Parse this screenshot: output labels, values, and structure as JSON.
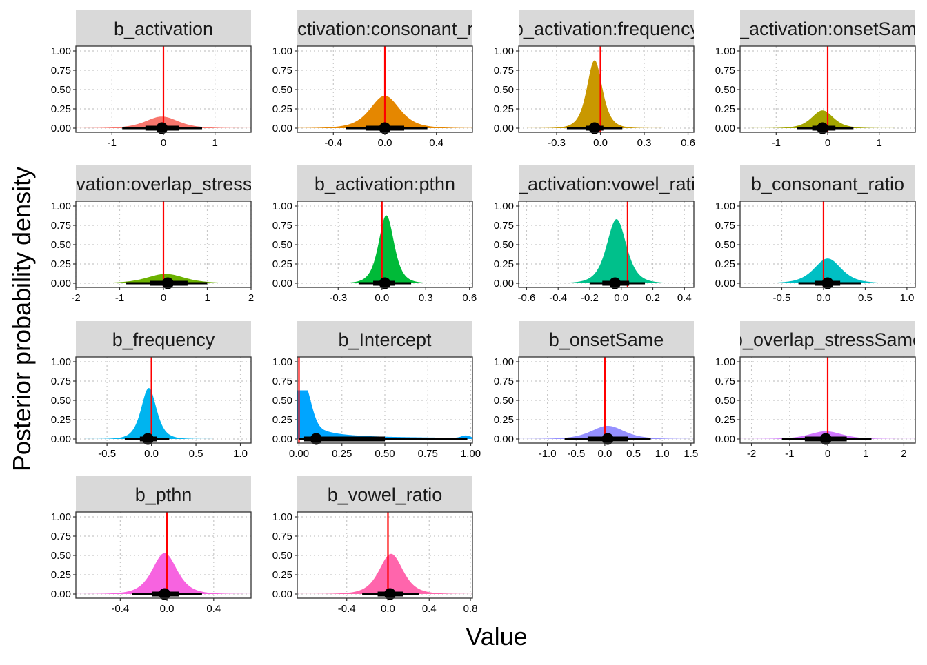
{
  "chart_data": {
    "type": "area",
    "xlabel": "Value",
    "ylabel": "Posterior probability density",
    "ylim": [
      0,
      1.05
    ],
    "y_ticks": [
      "1.00",
      "0.75",
      "0.50",
      "0.25",
      "0.00"
    ],
    "grid": true,
    "legend": "none",
    "reference_line_color": "#ff0000",
    "interval_color": "#000000",
    "panels": [
      {
        "title": "b_activation",
        "color": "#F8766D",
        "xlim": [
          -1.7,
          1.7
        ],
        "ref": 0.0,
        "ticks": [
          -1,
          0,
          1
        ],
        "tick_labels": [
          "-1",
          "0",
          "1"
        ],
        "peak": 0.15,
        "mode": -0.03,
        "sd": 0.33,
        "point": -0.03,
        "inner": [
          -0.35,
          0.3
        ],
        "outer": [
          -0.8,
          0.75
        ]
      },
      {
        "title": "b_activation:consonant_ratio",
        "color": "#E58700",
        "xlim": [
          -0.68,
          0.68
        ],
        "ref": 0.0,
        "ticks": [
          -0.4,
          0.0,
          0.4
        ],
        "tick_labels": [
          "-0.4",
          "0.0",
          "0.4"
        ],
        "peak": 0.42,
        "mode": 0.0,
        "sd": 0.12,
        "point": 0.0,
        "inner": [
          -0.15,
          0.15
        ],
        "outer": [
          -0.3,
          0.33
        ]
      },
      {
        "title": "b_activation:frequency",
        "color": "#C99800",
        "xlim": [
          -0.56,
          0.64
        ],
        "ref": 0.0,
        "ticks": [
          -0.3,
          0.0,
          0.3,
          0.6
        ],
        "tick_labels": [
          "-0.3",
          "0.0",
          "0.3",
          "0.6"
        ],
        "peak": 0.88,
        "mode": -0.04,
        "sd": 0.055,
        "point": -0.04,
        "inner": [
          -0.1,
          0.02
        ],
        "outer": [
          -0.23,
          0.15
        ]
      },
      {
        "title": "b_activation:onsetSame",
        "color": "#A3A500",
        "xlim": [
          -1.7,
          1.7
        ],
        "ref": 0.0,
        "ticks": [
          -1,
          0,
          1
        ],
        "tick_labels": [
          "-1",
          "0",
          "1"
        ],
        "peak": 0.23,
        "mode": -0.1,
        "sd": 0.22,
        "point": -0.1,
        "inner": [
          -0.3,
          0.15
        ],
        "outer": [
          -0.6,
          0.5
        ]
      },
      {
        "title": "b_activation:overlap_stressSame",
        "color": "#6BB100",
        "xlim": [
          -2.0,
          2.0
        ],
        "ref": 0.0,
        "ticks": [
          -2,
          -1,
          0,
          1,
          2
        ],
        "tick_labels": [
          "-2",
          "-1",
          "0",
          "1",
          "2"
        ],
        "peak": 0.12,
        "mode": 0.05,
        "sd": 0.45,
        "point": 0.1,
        "inner": [
          -0.3,
          0.55
        ],
        "outer": [
          -0.85,
          1.0
        ]
      },
      {
        "title": "b_activation:pthn",
        "color": "#00BA38",
        "xlim": [
          -0.58,
          0.62
        ],
        "ref": 0.0,
        "ticks": [
          -0.3,
          0.0,
          0.3,
          0.6
        ],
        "tick_labels": [
          "-0.3",
          "0.0",
          "0.3",
          "0.6"
        ],
        "peak": 0.88,
        "mode": 0.03,
        "sd": 0.055,
        "point": 0.02,
        "inner": [
          -0.06,
          0.09
        ],
        "outer": [
          -0.16,
          0.2
        ]
      },
      {
        "title": "b_activation:vowel_ratio",
        "color": "#00C08B",
        "xlim": [
          -0.65,
          0.46
        ],
        "ref": 0.04,
        "ticks": [
          -0.6,
          -0.4,
          -0.2,
          0.0,
          0.2,
          0.4
        ],
        "tick_labels": [
          "-0.6",
          "-0.4",
          "-0.2",
          "0.0",
          "0.2",
          "0.4"
        ],
        "peak": 0.83,
        "mode": -0.03,
        "sd": 0.065,
        "point": -0.04,
        "inner": [
          -0.12,
          0.05
        ],
        "outer": [
          -0.2,
          0.15
        ]
      },
      {
        "title": "b_consonant_ratio",
        "color": "#00BFC4",
        "xlim": [
          -1.0,
          1.1
        ],
        "ref": 0.0,
        "ticks": [
          -0.5,
          0.0,
          0.5,
          1.0
        ],
        "tick_labels": [
          "-0.5",
          "0.0",
          "0.5",
          "1.0"
        ],
        "peak": 0.32,
        "mode": 0.05,
        "sd": 0.17,
        "point": 0.05,
        "inner": [
          -0.1,
          0.2
        ],
        "outer": [
          -0.3,
          0.45
        ]
      },
      {
        "title": "b_frequency",
        "color": "#00B4EF",
        "xlim": [
          -0.85,
          1.12
        ],
        "ref": 0.0,
        "ticks": [
          -0.5,
          0.0,
          0.5,
          1.0
        ],
        "tick_labels": [
          "-0.5",
          "0.0",
          "0.5",
          "1.0"
        ],
        "peak": 0.66,
        "mode": -0.03,
        "sd": 0.09,
        "point": -0.04,
        "inner": [
          -0.13,
          0.06
        ],
        "outer": [
          -0.3,
          0.2
        ]
      },
      {
        "title": "b_Intercept",
        "color": "#00A5FF",
        "xlim": [
          -0.01,
          1.01
        ],
        "ref": 0.0,
        "ticks": [
          0.0,
          0.25,
          0.5,
          0.75,
          1.0
        ],
        "tick_labels": [
          "0.00",
          "0.25",
          "0.50",
          "0.75",
          "1.00"
        ],
        "peak": 0.63,
        "mode": 0.03,
        "sd": 0.2,
        "point": 0.1,
        "inner": [
          0.03,
          0.5
        ],
        "outer": [
          0.0,
          0.98
        ]
      },
      {
        "title": "b_onsetSame",
        "color": "#9590FF",
        "xlim": [
          -1.5,
          1.55
        ],
        "ref": 0.0,
        "ticks": [
          -1.0,
          -0.5,
          0.0,
          0.5,
          1.0,
          1.5
        ],
        "tick_labels": [
          "-1.0",
          "-0.5",
          "0.0",
          "0.5",
          "1.0",
          "1.5"
        ],
        "peak": 0.17,
        "mode": 0.05,
        "sd": 0.3,
        "point": 0.05,
        "inner": [
          -0.3,
          0.4
        ],
        "outer": [
          -0.7,
          0.8
        ]
      },
      {
        "title": "b_overlap_stressSame",
        "color": "#D277FF",
        "xlim": [
          -2.3,
          2.3
        ],
        "ref": 0.0,
        "ticks": [
          -2,
          -1,
          0,
          1,
          2
        ],
        "tick_labels": [
          "-2",
          "-1",
          "0",
          "1",
          "2"
        ],
        "peak": 0.1,
        "mode": -0.05,
        "sd": 0.45,
        "point": -0.05,
        "inner": [
          -0.6,
          0.5
        ],
        "outer": [
          -1.2,
          1.15
        ]
      },
      {
        "title": "b_pthn",
        "color": "#F763E0",
        "xlim": [
          -0.78,
          0.72
        ],
        "ref": 0.0,
        "ticks": [
          -0.4,
          0.0,
          0.4
        ],
        "tick_labels": [
          "-0.4",
          "0.0",
          "0.4"
        ],
        "peak": 0.53,
        "mode": -0.02,
        "sd": 0.11,
        "point": -0.02,
        "inner": [
          -0.13,
          0.1
        ],
        "outer": [
          -0.3,
          0.3
        ]
      },
      {
        "title": "b_vowel_ratio",
        "color": "#FF65AC",
        "xlim": [
          -0.88,
          0.82
        ],
        "ref": 0.0,
        "ticks": [
          -0.4,
          0.0,
          0.4,
          0.8
        ],
        "tick_labels": [
          "-0.4",
          "0.0",
          "0.4",
          "0.8"
        ],
        "peak": 0.52,
        "mode": 0.03,
        "sd": 0.12,
        "point": 0.02,
        "inner": [
          -0.1,
          0.15
        ],
        "outer": [
          -0.25,
          0.3
        ]
      }
    ]
  }
}
